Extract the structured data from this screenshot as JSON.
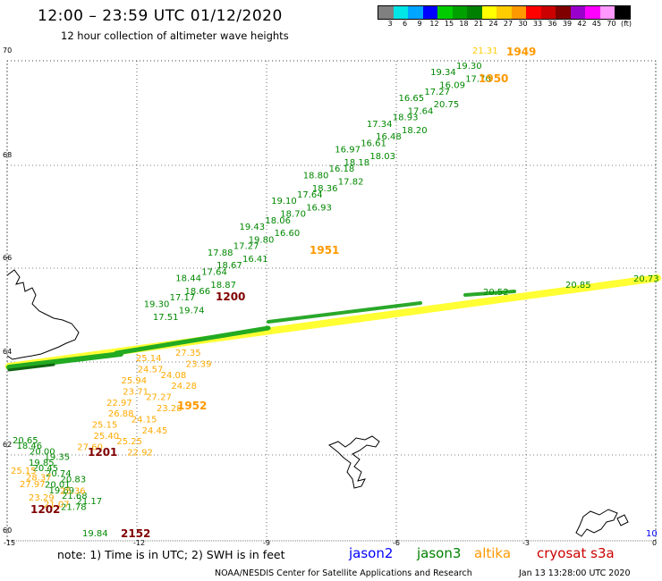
{
  "header": {
    "title": "12:00 – 23:59 UTC 01/12/2020",
    "subtitle": "12 hour collection of altimeter wave heights"
  },
  "colorbar": {
    "colors": [
      "#808080",
      "#00e5e5",
      "#00a5ff",
      "#0000ff",
      "#00cc00",
      "#00a000",
      "#008000",
      "#ffff00",
      "#ffcc00",
      "#ff9900",
      "#ff0000",
      "#cc0000",
      "#800000",
      "#9900cc",
      "#ff00ff",
      "#ff99ff",
      "#000000"
    ],
    "labels": [
      "3",
      "6",
      "9",
      "12",
      "15",
      "18",
      "21",
      "24",
      "27",
      "30",
      "33",
      "36",
      "39",
      "42",
      "45",
      "70",
      "(ft)"
    ]
  },
  "axes": {
    "x_ticks": [
      "-15",
      "-12",
      "-9",
      "-6",
      "-3",
      "0"
    ],
    "y_ticks": [
      "70",
      "68",
      "66",
      "64",
      "62",
      "60"
    ]
  },
  "tracks": {
    "jason3_a": [
      "19.30",
      "19.34",
      "17.70",
      "16.09",
      "17.27",
      "16.65",
      "20.75",
      "17.64",
      "18.93",
      "17.34",
      "18.20",
      "16.48",
      "16.61",
      "16.97",
      "18.03",
      "18.18",
      "16.18",
      "18.80",
      "17.82",
      "18.36",
      "17.64",
      "19.10",
      "16.93",
      "18.70",
      "18.06",
      "19.43",
      "16.60",
      "19.80",
      "17.27",
      "17.88",
      "16.41",
      "18.67",
      "17.64",
      "18.44",
      "18.87",
      "18.66",
      "17.17",
      "19.30",
      "19.74",
      "17.51"
    ],
    "altika_a": [
      "27.35",
      "25.14",
      "23.39",
      "24.57",
      "24.08",
      "25.94",
      "24.28",
      "23.71",
      "27.27",
      "22.97",
      "23.28",
      "26.88",
      "24.15",
      "25.15",
      "24.45",
      "25.40",
      "25.25",
      "27.60",
      "22.92"
    ],
    "jason3_b": [
      "20.65",
      "18.46",
      "20.00",
      "19.35",
      "19.85",
      "20.45",
      "20.74",
      "20.83",
      "20.01",
      "19.69",
      "21.68",
      "21.17",
      "21.78"
    ],
    "altika_b": [
      "25.15",
      "28.37",
      "27.97",
      "25.36",
      "23.29",
      "21.07"
    ],
    "jason3_c": [
      "19.84"
    ],
    "misc": [
      "21.31",
      "20.85",
      "20.73",
      "20.52"
    ]
  },
  "time_labels": [
    {
      "text": "1949",
      "color": "#ff9900"
    },
    {
      "text": "1950",
      "color": "#ff9900"
    },
    {
      "text": "1951",
      "color": "#ff9900"
    },
    {
      "text": "1952",
      "color": "#ff9900"
    },
    {
      "text": "1200",
      "color": "#800000"
    },
    {
      "text": "1201",
      "color": "#800000"
    },
    {
      "text": "1202",
      "color": "#800000"
    },
    {
      "text": "2152",
      "color": "#800000"
    }
  ],
  "footer": {
    "note": "note:  1) Time is in UTC; 2) SWH is in feet",
    "satellites": [
      {
        "name": "jason2",
        "color": "#0000ff"
      },
      {
        "name": "jason3",
        "color": "#008000"
      },
      {
        "name": "altika",
        "color": "#ff9900"
      },
      {
        "name": "cryosat s3a",
        "color": "#cc0000"
      }
    ],
    "credit": "NOAA/NESDIS Center for Satellite Applications and Research",
    "timestamp": "Jan 13 13:28:00 UTC 2020",
    "edge_label": "10"
  }
}
